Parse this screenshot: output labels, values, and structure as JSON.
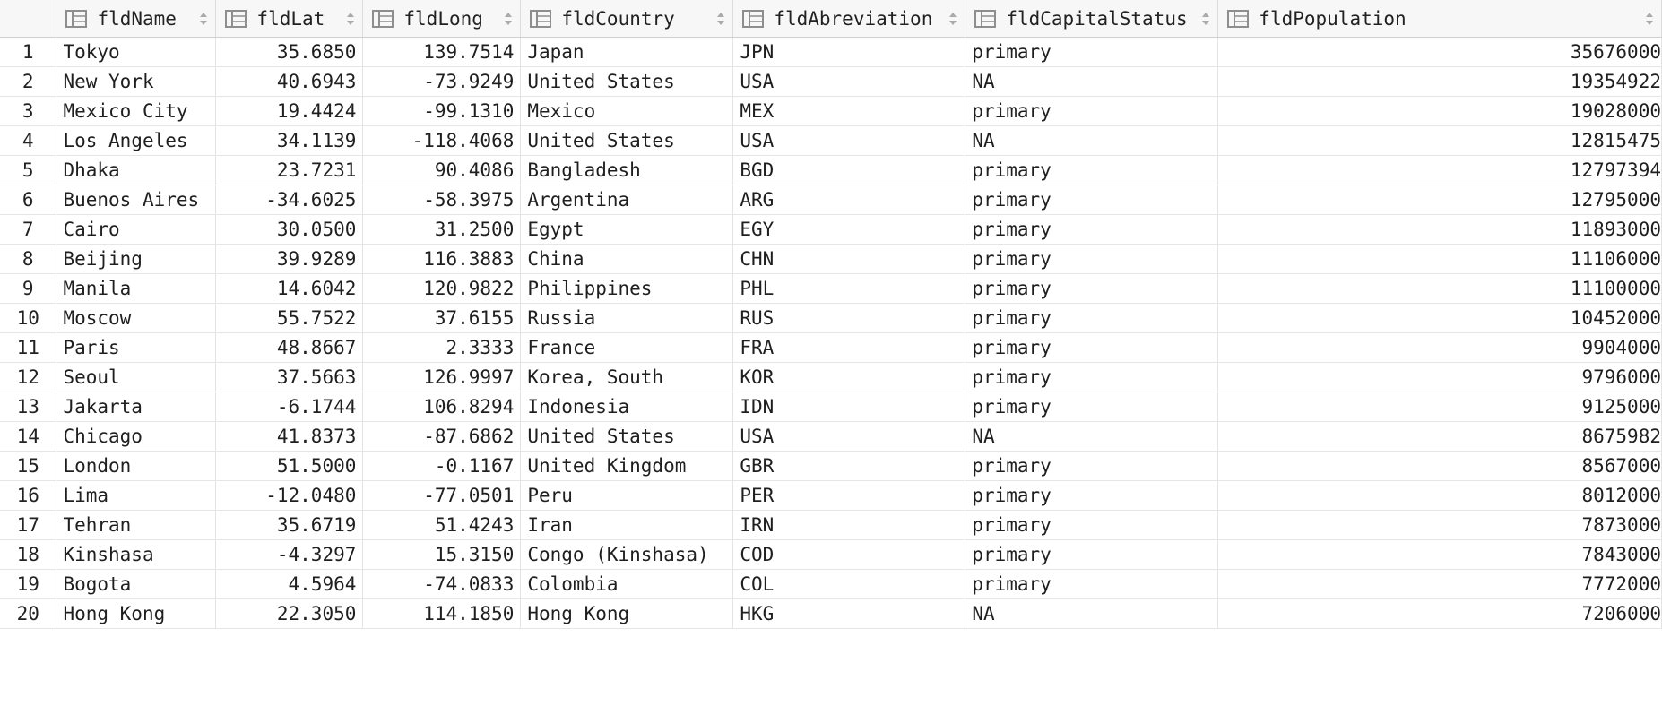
{
  "columns": [
    {
      "key": "fldName",
      "label": "fldName",
      "icon": "column-icon",
      "align": "left"
    },
    {
      "key": "fldLat",
      "label": "fldLat",
      "icon": "column-icon",
      "align": "right"
    },
    {
      "key": "fldLong",
      "label": "fldLong",
      "icon": "column-icon",
      "align": "right"
    },
    {
      "key": "fldCountry",
      "label": "fldCountry",
      "icon": "column-icon",
      "align": "left"
    },
    {
      "key": "fldAbreviation",
      "label": "fldAbreviation",
      "icon": "column-icon",
      "align": "left"
    },
    {
      "key": "fldCapitalStatus",
      "label": "fldCapitalStatus",
      "icon": "column-icon",
      "align": "left"
    },
    {
      "key": "fldPopulation",
      "label": "fldPopulation",
      "icon": "column-icon",
      "align": "right"
    }
  ],
  "rows": [
    {
      "n": "1",
      "fldName": "Tokyo",
      "fldLat": "35.6850",
      "fldLong": "139.7514",
      "fldCountry": "Japan",
      "fldAbreviation": "JPN",
      "fldCapitalStatus": "primary",
      "fldPopulation": "35676000"
    },
    {
      "n": "2",
      "fldName": "New York",
      "fldLat": "40.6943",
      "fldLong": "-73.9249",
      "fldCountry": "United States",
      "fldAbreviation": "USA",
      "fldCapitalStatus": "NA",
      "fldPopulation": "19354922"
    },
    {
      "n": "3",
      "fldName": "Mexico City",
      "fldLat": "19.4424",
      "fldLong": "-99.1310",
      "fldCountry": "Mexico",
      "fldAbreviation": "MEX",
      "fldCapitalStatus": "primary",
      "fldPopulation": "19028000"
    },
    {
      "n": "4",
      "fldName": "Los Angeles",
      "fldLat": "34.1139",
      "fldLong": "-118.4068",
      "fldCountry": "United States",
      "fldAbreviation": "USA",
      "fldCapitalStatus": "NA",
      "fldPopulation": "12815475"
    },
    {
      "n": "5",
      "fldName": "Dhaka",
      "fldLat": "23.7231",
      "fldLong": "90.4086",
      "fldCountry": "Bangladesh",
      "fldAbreviation": "BGD",
      "fldCapitalStatus": "primary",
      "fldPopulation": "12797394"
    },
    {
      "n": "6",
      "fldName": "Buenos Aires",
      "fldLat": "-34.6025",
      "fldLong": "-58.3975",
      "fldCountry": "Argentina",
      "fldAbreviation": "ARG",
      "fldCapitalStatus": "primary",
      "fldPopulation": "12795000"
    },
    {
      "n": "7",
      "fldName": "Cairo",
      "fldLat": "30.0500",
      "fldLong": "31.2500",
      "fldCountry": "Egypt",
      "fldAbreviation": "EGY",
      "fldCapitalStatus": "primary",
      "fldPopulation": "11893000"
    },
    {
      "n": "8",
      "fldName": "Beijing",
      "fldLat": "39.9289",
      "fldLong": "116.3883",
      "fldCountry": "China",
      "fldAbreviation": "CHN",
      "fldCapitalStatus": "primary",
      "fldPopulation": "11106000"
    },
    {
      "n": "9",
      "fldName": "Manila",
      "fldLat": "14.6042",
      "fldLong": "120.9822",
      "fldCountry": "Philippines",
      "fldAbreviation": "PHL",
      "fldCapitalStatus": "primary",
      "fldPopulation": "11100000"
    },
    {
      "n": "10",
      "fldName": "Moscow",
      "fldLat": "55.7522",
      "fldLong": "37.6155",
      "fldCountry": "Russia",
      "fldAbreviation": "RUS",
      "fldCapitalStatus": "primary",
      "fldPopulation": "10452000"
    },
    {
      "n": "11",
      "fldName": "Paris",
      "fldLat": "48.8667",
      "fldLong": "2.3333",
      "fldCountry": "France",
      "fldAbreviation": "FRA",
      "fldCapitalStatus": "primary",
      "fldPopulation": "9904000"
    },
    {
      "n": "12",
      "fldName": "Seoul",
      "fldLat": "37.5663",
      "fldLong": "126.9997",
      "fldCountry": "Korea, South",
      "fldAbreviation": "KOR",
      "fldCapitalStatus": "primary",
      "fldPopulation": "9796000"
    },
    {
      "n": "13",
      "fldName": "Jakarta",
      "fldLat": "-6.1744",
      "fldLong": "106.8294",
      "fldCountry": "Indonesia",
      "fldAbreviation": "IDN",
      "fldCapitalStatus": "primary",
      "fldPopulation": "9125000"
    },
    {
      "n": "14",
      "fldName": "Chicago",
      "fldLat": "41.8373",
      "fldLong": "-87.6862",
      "fldCountry": "United States",
      "fldAbreviation": "USA",
      "fldCapitalStatus": "NA",
      "fldPopulation": "8675982"
    },
    {
      "n": "15",
      "fldName": "London",
      "fldLat": "51.5000",
      "fldLong": "-0.1167",
      "fldCountry": "United Kingdom",
      "fldAbreviation": "GBR",
      "fldCapitalStatus": "primary",
      "fldPopulation": "8567000"
    },
    {
      "n": "16",
      "fldName": "Lima",
      "fldLat": "-12.0480",
      "fldLong": "-77.0501",
      "fldCountry": "Peru",
      "fldAbreviation": "PER",
      "fldCapitalStatus": "primary",
      "fldPopulation": "8012000"
    },
    {
      "n": "17",
      "fldName": "Tehran",
      "fldLat": "35.6719",
      "fldLong": "51.4243",
      "fldCountry": "Iran",
      "fldAbreviation": "IRN",
      "fldCapitalStatus": "primary",
      "fldPopulation": "7873000"
    },
    {
      "n": "18",
      "fldName": "Kinshasa",
      "fldLat": "-4.3297",
      "fldLong": "15.3150",
      "fldCountry": "Congo (Kinshasa)",
      "fldAbreviation": "COD",
      "fldCapitalStatus": "primary",
      "fldPopulation": "7843000"
    },
    {
      "n": "19",
      "fldName": "Bogota",
      "fldLat": "4.5964",
      "fldLong": "-74.0833",
      "fldCountry": "Colombia",
      "fldAbreviation": "COL",
      "fldCapitalStatus": "primary",
      "fldPopulation": "7772000"
    },
    {
      "n": "20",
      "fldName": "Hong Kong",
      "fldLat": "22.3050",
      "fldLong": "114.1850",
      "fldCountry": "Hong Kong",
      "fldAbreviation": "HKG",
      "fldCapitalStatus": "NA",
      "fldPopulation": "7206000"
    }
  ],
  "colors": {
    "header_bg": "#f7f7f7",
    "grid_line": "#e3e3e3",
    "icon": "#8e8e8e"
  }
}
